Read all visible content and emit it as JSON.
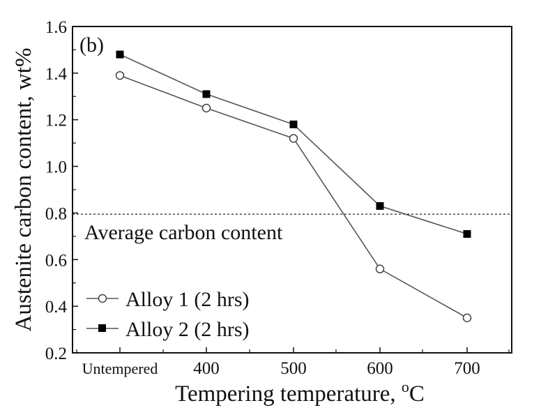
{
  "chart_data": {
    "type": "line",
    "panel_label": "(b)",
    "xlabel": "Tempering temperature, ",
    "xlabel_unit": "C",
    "xlabel_unit_sup": "o",
    "ylabel": "Austenite carbon content, wt%",
    "categories": [
      "Untempered",
      "400",
      "500",
      "600",
      "700"
    ],
    "ylim": [
      0.2,
      1.6
    ],
    "yticks": [
      "0.2",
      "0.4",
      "0.6",
      "0.8",
      "1.0",
      "1.2",
      "1.4",
      "1.6"
    ],
    "yticks_values": [
      0.2,
      0.4,
      0.6,
      0.8,
      1.0,
      1.2,
      1.4,
      1.6
    ],
    "series": [
      {
        "name": "Alloy 1 (2 hrs)",
        "marker": "open-circle",
        "values": [
          1.39,
          1.25,
          1.12,
          0.56,
          0.35
        ]
      },
      {
        "name": "Alloy 2 (2 hrs)",
        "marker": "filled-square",
        "values": [
          1.48,
          1.31,
          1.18,
          0.83,
          0.71
        ]
      }
    ],
    "reference_line": {
      "value": 0.795,
      "style": "dashed",
      "label": "Average carbon content"
    },
    "legend_position": "bottom-left",
    "grid": false,
    "colors": {
      "line": "#555555",
      "marker_fill": "#000000",
      "text": "#111111"
    }
  }
}
